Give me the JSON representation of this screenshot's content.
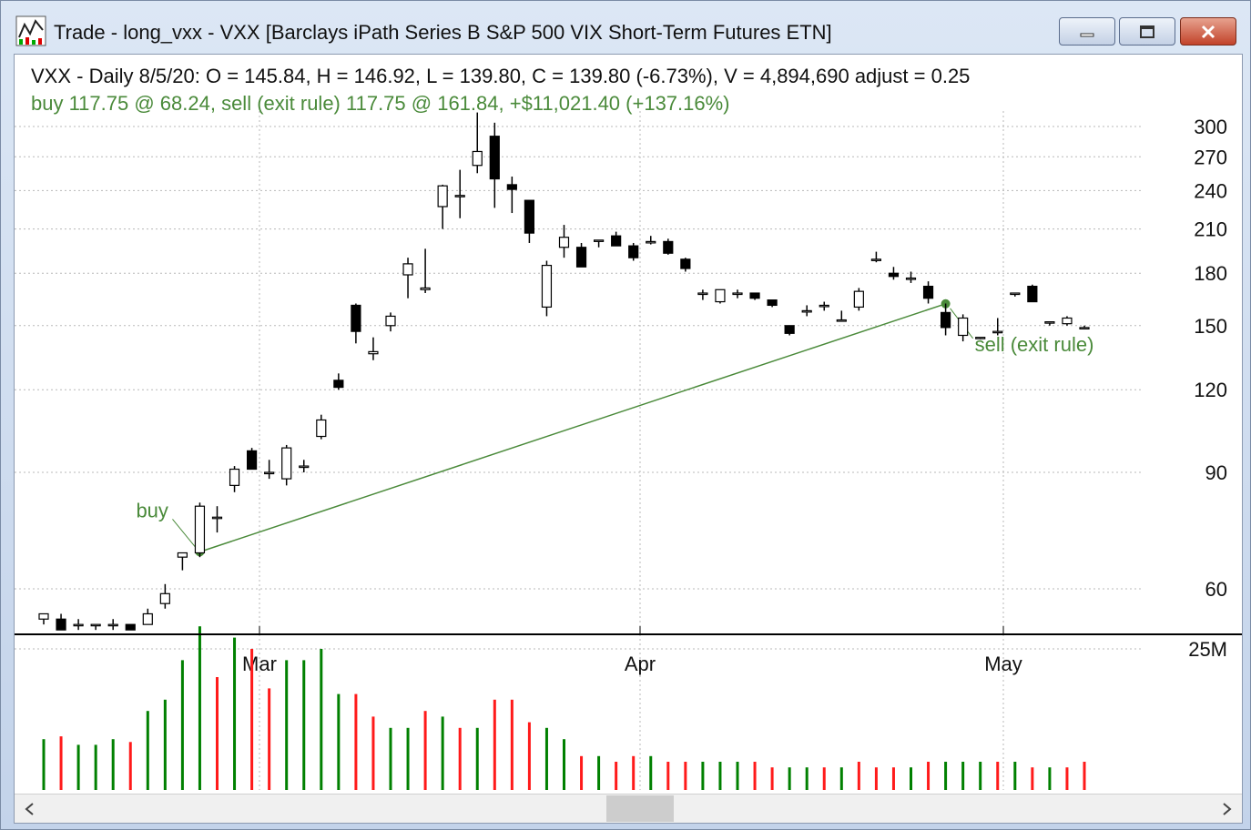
{
  "window": {
    "title": "Trade - long_vxx - VXX [Barclays iPath Series B S&P 500 VIX Short-Term Futures ETN]",
    "buttons": {
      "minimize": "—",
      "maximize": "☐",
      "close": "✕"
    }
  },
  "header": {
    "quote_line": "VXX - Daily 8/5/20:  O = 145.84,  H = 146.92,  L = 139.80,  C = 139.80 (-6.73%), V = 4,894,690  adjust = 0.25",
    "trade_line": "buy 117.75 @ 68.24, sell (exit rule) 117.75 @ 161.84, +$11,021.40 (+137.16%)"
  },
  "colors": {
    "up": "#008000",
    "down": "#ff1a1a",
    "trade": "#4a8a3a",
    "grid": "#b8b8b8"
  },
  "chart_data": {
    "type": "candlestick",
    "y_ticks": [
      60,
      90,
      120,
      150,
      180,
      210,
      240,
      270,
      300
    ],
    "y_tick_labels": [
      "60",
      "90",
      "120",
      "150",
      "180",
      "210",
      "240",
      "270",
      "300"
    ],
    "x_tick_labels": [
      "Mar",
      "Apr",
      "May"
    ],
    "volume_tick_label": "25M",
    "candles": [
      {
        "o": 54,
        "h": 55,
        "l": 53,
        "c": 55
      },
      {
        "o": 54,
        "h": 55,
        "l": 52,
        "c": 52
      },
      {
        "o": 53,
        "h": 54,
        "l": 52,
        "c": 53
      },
      {
        "o": 53,
        "h": 53,
        "l": 52,
        "c": 53
      },
      {
        "o": 53,
        "h": 54,
        "l": 52,
        "c": 53
      },
      {
        "o": 53,
        "h": 53,
        "l": 52,
        "c": 52
      },
      {
        "o": 53,
        "h": 56,
        "l": 53,
        "c": 55
      },
      {
        "o": 57,
        "h": 61,
        "l": 56,
        "c": 59
      },
      {
        "o": 67,
        "h": 68,
        "l": 64,
        "c": 68
      },
      {
        "o": 68,
        "h": 81,
        "l": 67,
        "c": 80
      },
      {
        "o": 77,
        "h": 80,
        "l": 73,
        "c": 77
      },
      {
        "o": 86,
        "h": 92,
        "l": 84,
        "c": 91
      },
      {
        "o": 97,
        "h": 98,
        "l": 91,
        "c": 91
      },
      {
        "o": 90,
        "h": 94,
        "l": 88,
        "c": 90
      },
      {
        "o": 88,
        "h": 99,
        "l": 86,
        "c": 98
      },
      {
        "o": 92,
        "h": 94,
        "l": 90,
        "c": 92
      },
      {
        "o": 102,
        "h": 110,
        "l": 101,
        "c": 108
      },
      {
        "o": 124,
        "h": 127,
        "l": 120,
        "c": 121
      },
      {
        "o": 161,
        "h": 162,
        "l": 141,
        "c": 147
      },
      {
        "o": 136,
        "h": 144,
        "l": 133,
        "c": 137
      },
      {
        "o": 150,
        "h": 157,
        "l": 147,
        "c": 155
      },
      {
        "o": 179,
        "h": 190,
        "l": 165,
        "c": 186
      },
      {
        "o": 170,
        "h": 196,
        "l": 168,
        "c": 171
      },
      {
        "o": 227,
        "h": 245,
        "l": 210,
        "c": 244
      },
      {
        "o": 236,
        "h": 258,
        "l": 218,
        "c": 236
      },
      {
        "o": 262,
        "h": 315,
        "l": 255,
        "c": 275
      },
      {
        "o": 290,
        "h": 304,
        "l": 226,
        "c": 250
      },
      {
        "o": 245,
        "h": 252,
        "l": 222,
        "c": 241
      },
      {
        "o": 232,
        "h": 232,
        "l": 200,
        "c": 207
      },
      {
        "o": 160,
        "h": 188,
        "l": 155,
        "c": 185
      },
      {
        "o": 197,
        "h": 213,
        "l": 190,
        "c": 204
      },
      {
        "o": 197,
        "h": 200,
        "l": 184,
        "c": 184
      },
      {
        "o": 202,
        "h": 202,
        "l": 197,
        "c": 202
      },
      {
        "o": 205,
        "h": 208,
        "l": 198,
        "c": 198
      },
      {
        "o": 198,
        "h": 200,
        "l": 188,
        "c": 190
      },
      {
        "o": 201,
        "h": 205,
        "l": 199,
        "c": 201
      },
      {
        "o": 201,
        "h": 203,
        "l": 192,
        "c": 193
      },
      {
        "o": 189,
        "h": 190,
        "l": 181,
        "c": 183
      },
      {
        "o": 168,
        "h": 170,
        "l": 164,
        "c": 168
      },
      {
        "o": 163,
        "h": 170,
        "l": 162,
        "c": 170
      },
      {
        "o": 168,
        "h": 170,
        "l": 165,
        "c": 168
      },
      {
        "o": 168,
        "h": 168,
        "l": 164,
        "c": 165
      },
      {
        "o": 164,
        "h": 164,
        "l": 160,
        "c": 161
      },
      {
        "o": 150,
        "h": 150,
        "l": 145,
        "c": 146
      },
      {
        "o": 158,
        "h": 161,
        "l": 155,
        "c": 158
      },
      {
        "o": 161,
        "h": 163,
        "l": 158,
        "c": 161
      },
      {
        "o": 153,
        "h": 158,
        "l": 153,
        "c": 153
      },
      {
        "o": 160,
        "h": 171,
        "l": 158,
        "c": 169
      },
      {
        "o": 189,
        "h": 194,
        "l": 187,
        "c": 189
      },
      {
        "o": 180,
        "h": 184,
        "l": 176,
        "c": 178
      },
      {
        "o": 177,
        "h": 181,
        "l": 174,
        "c": 177
      },
      {
        "o": 172,
        "h": 175,
        "l": 162,
        "c": 165
      },
      {
        "o": 157,
        "h": 162,
        "l": 145,
        "c": 149
      },
      {
        "o": 145,
        "h": 156,
        "l": 142,
        "c": 154
      },
      {
        "o": 144,
        "h": 144,
        "l": 143,
        "c": 144
      },
      {
        "o": 147,
        "h": 154,
        "l": 145,
        "c": 147
      },
      {
        "o": 168,
        "h": 168,
        "l": 166,
        "c": 168
      },
      {
        "o": 172,
        "h": 173,
        "l": 163,
        "c": 163
      },
      {
        "o": 152,
        "h": 152,
        "l": 150,
        "c": 152
      },
      {
        "o": 151,
        "h": 155,
        "l": 150,
        "c": 154
      },
      {
        "o": 149,
        "h": 150,
        "l": 148,
        "c": 149
      }
    ],
    "volume_millions": [
      9,
      9.5,
      8,
      8,
      9,
      8.5,
      14,
      16,
      23,
      29,
      20,
      27,
      25,
      18,
      23,
      23,
      25,
      17,
      17,
      13,
      11,
      11,
      14,
      13,
      11,
      11,
      16,
      16,
      12,
      11,
      9,
      6,
      6,
      5,
      6,
      6,
      5,
      5,
      5,
      5,
      5,
      5,
      4,
      4,
      4,
      4,
      4,
      5,
      4,
      4,
      4,
      5,
      5,
      5,
      5,
      5,
      5,
      4,
      4,
      4,
      5
    ],
    "volume_up": [
      true,
      false,
      true,
      true,
      true,
      false,
      true,
      true,
      true,
      true,
      false,
      true,
      false,
      false,
      true,
      true,
      true,
      true,
      false,
      false,
      true,
      true,
      false,
      true,
      false,
      true,
      false,
      false,
      false,
      true,
      true,
      false,
      true,
      false,
      false,
      true,
      false,
      false,
      true,
      true,
      true,
      false,
      false,
      true,
      true,
      false,
      true,
      false,
      false,
      false,
      true,
      false,
      true,
      true,
      true,
      false,
      true,
      false,
      true,
      false,
      false
    ],
    "trade": {
      "buy_label": "buy",
      "sell_label": "sell (exit rule)",
      "buy_price": 68.24,
      "sell_price": 161.84,
      "buy_index": 9,
      "sell_index": 52
    }
  }
}
